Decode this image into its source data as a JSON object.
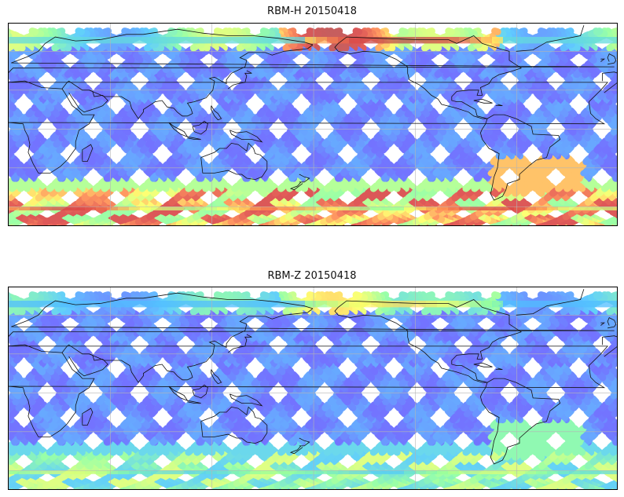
{
  "panels": [
    {
      "title": "RBM-H 20150418",
      "colormap": [
        "#6464ff",
        "#4fc8ff",
        "#8cffa0",
        "#ffff64",
        "#ff8c50",
        "#dc4646",
        "#b45050"
      ],
      "south_level": 0.85,
      "north_level": 0.45,
      "pacific_north_hot": 0.95
    },
    {
      "title": "RBM-Z 20150418",
      "colormap": [
        "#6464ff",
        "#4fc8ff",
        "#8cffa0",
        "#ffff64",
        "#ff8c50",
        "#dc4646",
        "#b45050"
      ],
      "south_level": 0.45,
      "north_level": 0.3,
      "pacific_north_hot": 0.55
    }
  ],
  "map": {
    "projection": "equirectangular",
    "gridlines": "on",
    "coastlines": "on",
    "track_pattern": "crossing satellite ground tracks"
  }
}
